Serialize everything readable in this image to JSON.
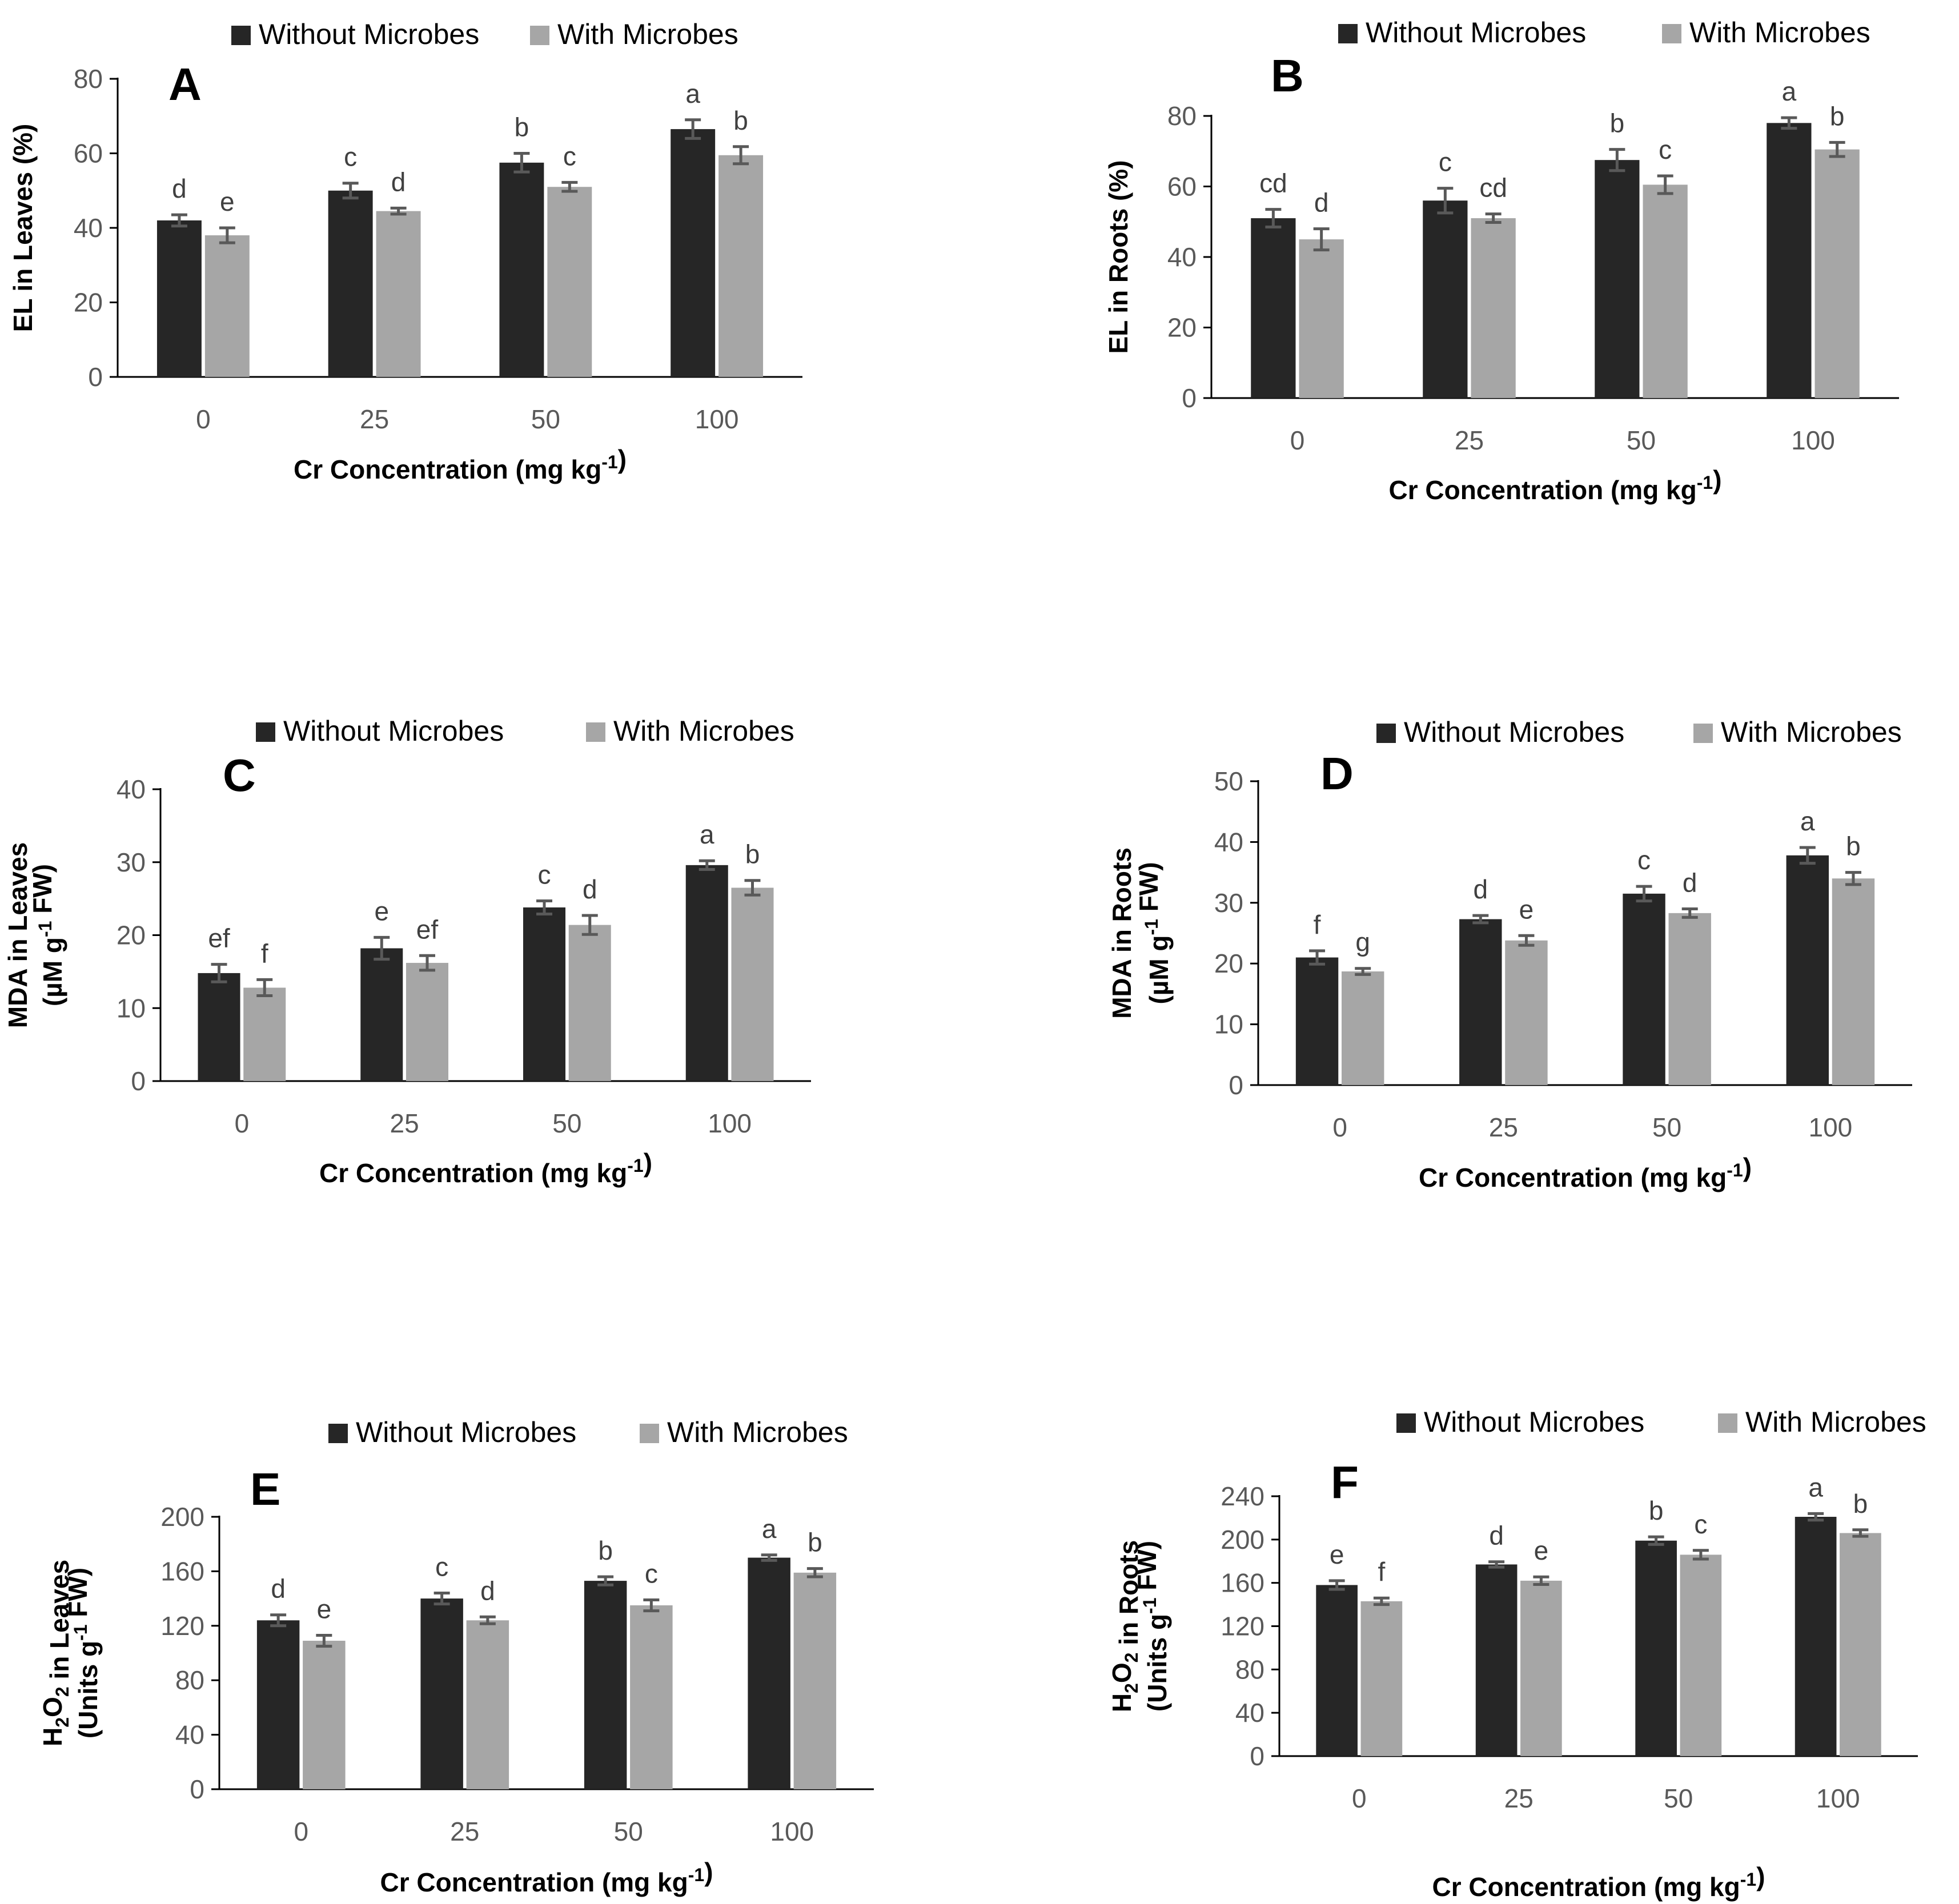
{
  "colors": {
    "without": "#262626",
    "with": "#a6a6a6",
    "axis": "#000000",
    "errorbar": "#595959"
  },
  "chart_data": [
    {
      "panel": "A",
      "type": "bar",
      "categories": [
        "0",
        "25",
        "50",
        "100"
      ],
      "xlabel": "Cr Concentration (mg kg-1)",
      "ylabel": "EL in Leaves (%)",
      "ylim": [
        0,
        80
      ],
      "yticks": [
        0,
        20,
        40,
        60,
        80
      ],
      "legend": "top",
      "series": [
        {
          "name": "Without Microbes",
          "values": [
            42,
            50,
            57.5,
            66.5
          ],
          "errors": [
            1.5,
            2,
            2.5,
            2.5
          ],
          "letters": [
            "d",
            "c",
            "b",
            "a"
          ]
        },
        {
          "name": "With Microbes",
          "values": [
            38,
            44.5,
            51,
            59.5
          ],
          "errors": [
            2,
            0.8,
            1.2,
            2.3
          ],
          "letters": [
            "e",
            "d",
            "c",
            "b"
          ]
        }
      ]
    },
    {
      "panel": "B",
      "type": "bar",
      "categories": [
        "0",
        "25",
        "50",
        "100"
      ],
      "xlabel": "Cr Concentration (mg kg-1)",
      "ylabel": "EL in Roots (%)",
      "ylim": [
        0,
        80
      ],
      "yticks": [
        0,
        20,
        40,
        60,
        80
      ],
      "legend": "top",
      "series": [
        {
          "name": "Without Microbes",
          "values": [
            51,
            56,
            67.5,
            78
          ],
          "errors": [
            2.5,
            3.5,
            3,
            1.5
          ],
          "letters": [
            "cd",
            "c",
            "b",
            "a"
          ]
        },
        {
          "name": "With Microbes",
          "values": [
            45,
            51,
            60.5,
            70.5
          ],
          "errors": [
            3,
            1.2,
            2.5,
            2
          ],
          "letters": [
            "d",
            "cd",
            "c",
            "b"
          ]
        }
      ]
    },
    {
      "panel": "C",
      "type": "bar",
      "categories": [
        "0",
        "25",
        "50",
        "100"
      ],
      "xlabel": "Cr Concentration (mg kg-1)",
      "ylabel": "MDA in Leaves",
      "ylabel2": "(µM g-1 FW)",
      "ylim": [
        0,
        40
      ],
      "yticks": [
        0,
        10,
        20,
        30,
        40
      ],
      "legend": "top",
      "series": [
        {
          "name": "Without Microbes",
          "values": [
            14.8,
            18.2,
            23.8,
            29.6
          ],
          "errors": [
            1.2,
            1.5,
            0.9,
            0.6
          ],
          "letters": [
            "ef",
            "e",
            "c",
            "a"
          ]
        },
        {
          "name": "With Microbes",
          "values": [
            12.8,
            16.2,
            21.4,
            26.5
          ],
          "errors": [
            1.1,
            1,
            1.3,
            1
          ],
          "letters": [
            "f",
            "ef",
            "d",
            "b"
          ]
        }
      ]
    },
    {
      "panel": "D",
      "type": "bar",
      "categories": [
        "0",
        "25",
        "50",
        "100"
      ],
      "xlabel": "Cr Concentration (mg kg-1)",
      "ylabel": "MDA in Roots",
      "ylabel2": "(µM g-1 FW)",
      "ylim": [
        0,
        50
      ],
      "yticks": [
        0,
        10,
        20,
        30,
        40,
        50
      ],
      "legend": "top",
      "series": [
        {
          "name": "Without Microbes",
          "values": [
            21,
            27.3,
            31.5,
            37.8
          ],
          "errors": [
            1.1,
            0.6,
            1.2,
            1.3
          ],
          "letters": [
            "f",
            "d",
            "c",
            "a"
          ]
        },
        {
          "name": "With Microbes",
          "values": [
            18.7,
            23.8,
            28.3,
            34
          ],
          "errors": [
            0.5,
            0.8,
            0.7,
            1
          ],
          "letters": [
            "g",
            "e",
            "d",
            "b"
          ]
        }
      ]
    },
    {
      "panel": "E",
      "type": "bar",
      "categories": [
        "0",
        "25",
        "50",
        "100"
      ],
      "xlabel": "Cr Concentration (mg kg-1)",
      "ylabel": "H2O2 in Leaves",
      "ylabel2": "(Units g-1 FW)",
      "ylim": [
        0,
        200
      ],
      "yticks": [
        0,
        40,
        80,
        120,
        160,
        200
      ],
      "legend": "top",
      "series": [
        {
          "name": "Without Microbes",
          "values": [
            124,
            140,
            153,
            170
          ],
          "errors": [
            4,
            4,
            3,
            2
          ],
          "letters": [
            "d",
            "c",
            "b",
            "a"
          ]
        },
        {
          "name": "With Microbes",
          "values": [
            109,
            124,
            135,
            159
          ],
          "errors": [
            4,
            2.5,
            4,
            3
          ],
          "letters": [
            "e",
            "d",
            "c",
            "b"
          ]
        }
      ]
    },
    {
      "panel": "F",
      "type": "bar",
      "categories": [
        "0",
        "25",
        "50",
        "100"
      ],
      "xlabel": "Cr Concentration (mg kg-1)",
      "ylabel": "H2O2 in Roots",
      "ylabel2": "(Units g-1 FW)",
      "ylim": [
        0,
        240
      ],
      "yticks": [
        0,
        40,
        80,
        120,
        160,
        200,
        240
      ],
      "legend": "top",
      "series": [
        {
          "name": "Without Microbes",
          "values": [
            158,
            177,
            199,
            221
          ],
          "errors": [
            4,
            2.5,
            3.5,
            3
          ],
          "letters": [
            "e",
            "d",
            "b",
            "a"
          ]
        },
        {
          "name": "With Microbes",
          "values": [
            143,
            162,
            186,
            206
          ],
          "errors": [
            3,
            3.5,
            4,
            3
          ],
          "letters": [
            "f",
            "e",
            "c",
            "b"
          ]
        }
      ]
    }
  ]
}
